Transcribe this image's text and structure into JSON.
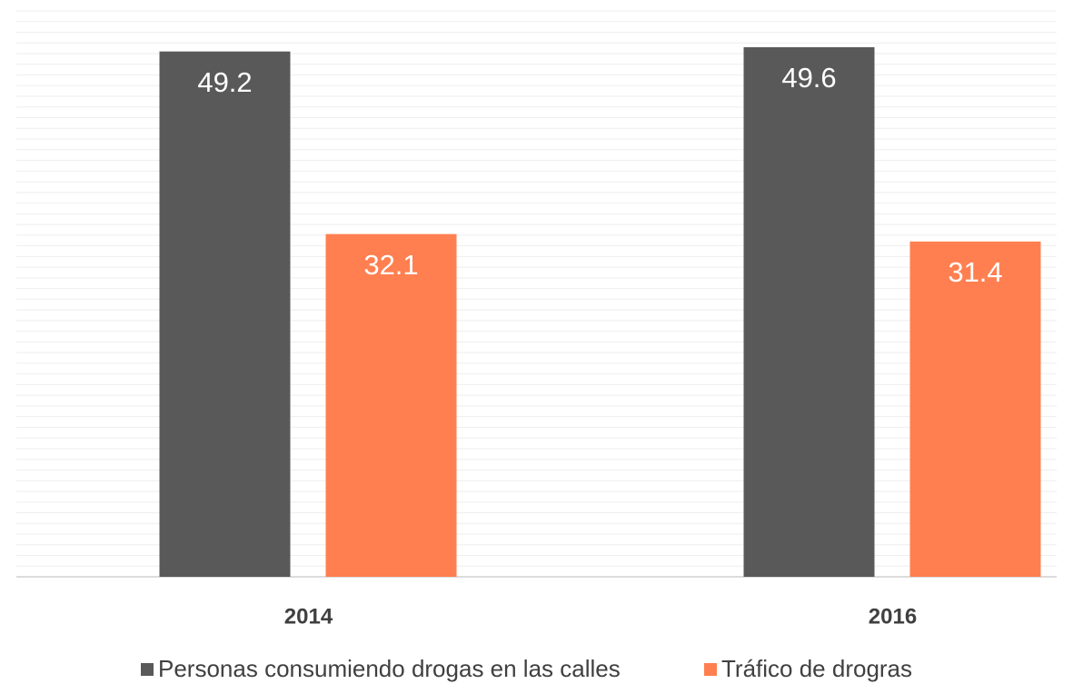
{
  "chart_data": {
    "type": "bar",
    "categories": [
      "2014",
      "2016"
    ],
    "series": [
      {
        "name": "Personas consumiendo drogas en las calles",
        "color": "#595959",
        "values": [
          49.2,
          49.6
        ]
      },
      {
        "name": "Tráfico de drogras",
        "color": "#ff7f50",
        "values": [
          32.1,
          31.4
        ]
      }
    ],
    "ylim": [
      0,
      53
    ],
    "yticks": [
      0,
      1,
      2,
      3,
      4,
      5,
      6,
      7,
      8,
      9,
      10,
      11,
      12,
      13,
      14,
      15,
      16,
      17,
      18,
      19,
      20,
      21,
      22,
      23,
      24,
      25,
      26,
      27,
      28,
      29,
      30,
      31,
      32,
      33,
      34,
      35,
      36,
      37,
      38,
      39,
      40,
      41,
      42,
      43,
      44,
      45,
      46,
      47,
      48,
      49,
      50,
      51,
      52,
      53
    ],
    "grid": true
  }
}
